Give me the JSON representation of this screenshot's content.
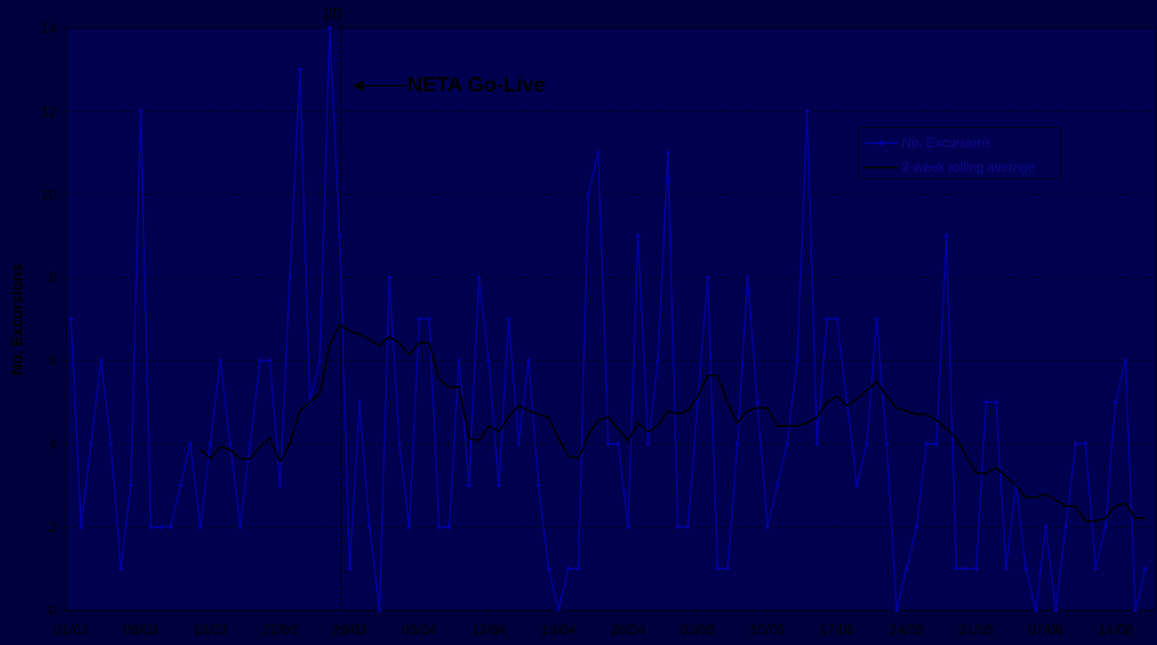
{
  "colors": {
    "background": "#00003f",
    "plot_area": "#000050",
    "series_line": "#0000a8",
    "average_line": "#000000",
    "grid": "#000000"
  },
  "chart_data": {
    "type": "line",
    "ylabel": "No. Excursions",
    "xlabel": "",
    "title": "",
    "ylim": [
      0,
      14
    ],
    "y_ticks": [
      "0",
      "2",
      "4",
      "6",
      "8",
      "10",
      "12",
      "14"
    ],
    "x_tick_labels": [
      "01/03",
      "08/03",
      "15/03",
      "22/03",
      "29/03",
      "05/04",
      "12/04",
      "19/04",
      "26/04",
      "03/05",
      "10/05",
      "17/05",
      "24/05",
      "31/05",
      "07/06",
      "14/06"
    ],
    "grid": true,
    "legend_position": "top-right",
    "series": [
      {
        "name": "No. Excursions",
        "values": [
          7,
          2,
          4,
          6,
          4,
          1,
          3,
          12,
          2,
          2,
          2,
          3,
          4,
          2,
          4,
          6,
          4,
          2,
          4,
          6,
          6,
          3,
          8,
          13,
          5,
          6,
          20,
          9,
          1,
          5,
          2,
          0,
          8,
          4,
          2,
          7,
          7,
          2,
          2,
          6,
          3,
          8,
          6,
          3,
          7,
          4,
          6,
          3,
          1,
          0,
          1,
          1,
          10,
          11,
          4,
          4,
          2,
          9,
          4,
          6,
          11,
          2,
          2,
          5,
          8,
          1,
          1,
          4,
          8,
          5,
          2,
          3,
          4,
          6,
          12,
          4,
          7,
          7,
          5,
          3,
          4,
          7,
          4,
          0,
          1,
          2,
          4,
          4,
          9,
          1,
          1,
          1,
          5,
          5,
          1,
          3,
          1,
          0,
          2,
          0,
          2,
          4,
          4,
          1,
          2,
          5,
          6,
          0,
          1
        ]
      },
      {
        "name": "2-week rolling average",
        "start_index": 13,
        "values": [
          3.86,
          3.64,
          3.93,
          3.86,
          3.64,
          3.64,
          3.93,
          4.14,
          3.57,
          4.0,
          4.79,
          5.0,
          5.21,
          6.36,
          6.86,
          6.71,
          6.64,
          6.5,
          6.36,
          6.57,
          6.43,
          6.14,
          6.43,
          6.43,
          5.57,
          5.36,
          5.36,
          4.14,
          4.07,
          4.43,
          4.29,
          4.64,
          4.93,
          4.79,
          4.71,
          4.64,
          4.14,
          3.71,
          3.64,
          4.21,
          4.57,
          4.64,
          4.36,
          4.07,
          4.5,
          4.29,
          4.43,
          4.79,
          4.71,
          4.79,
          5.14,
          5.64,
          5.64,
          5.0,
          4.5,
          4.79,
          4.86,
          4.86,
          4.43,
          4.43,
          4.43,
          4.5,
          4.64,
          5.0,
          5.14,
          4.93,
          5.07,
          5.29,
          5.5,
          5.14,
          4.86,
          4.79,
          4.71,
          4.71,
          4.57,
          4.36,
          4.14,
          3.71,
          3.29,
          3.29,
          3.43,
          3.21,
          3.0,
          2.71,
          2.71,
          2.79,
          2.64,
          2.5,
          2.5,
          2.14,
          2.14,
          2.21,
          2.5,
          2.57,
          2.21,
          2.21
        ]
      }
    ],
    "annotations": {
      "go_live_label": "NETA Go-Live",
      "go_live_index": 27,
      "peak_label": "20",
      "peak_index": 26
    }
  }
}
